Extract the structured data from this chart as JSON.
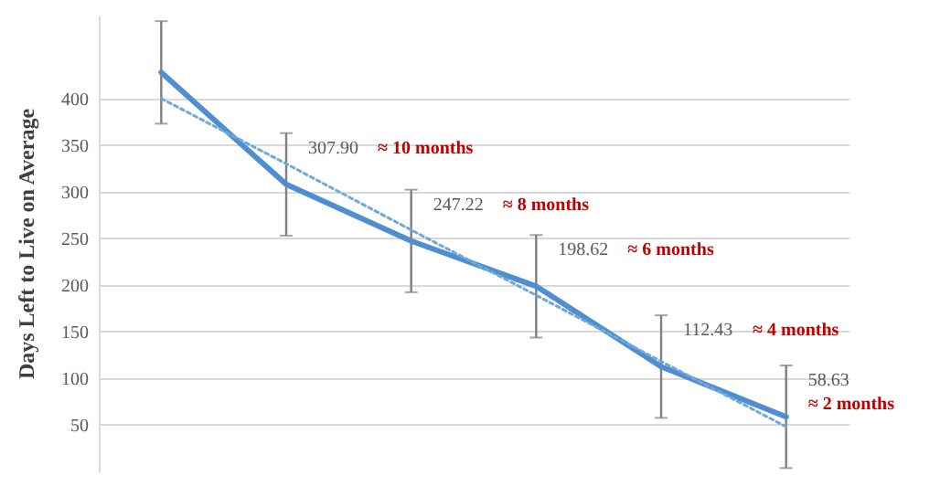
{
  "chart_data": {
    "type": "line",
    "ylabel": "Days Left to Live on Average",
    "categories": [
      null,
      null,
      null,
      null,
      null,
      null
    ],
    "series": [
      {
        "color": "#4f8fcf",
        "values": [
          428,
          307.9,
          247.22,
          198.62,
          112.43,
          58.63
        ],
        "errors": [
          55,
          55,
          55,
          55,
          55,
          55
        ],
        "value_labels": [
          null,
          "307.90",
          "247.22",
          "198.62",
          "112.43",
          "58.63"
        ],
        "line_style": "solid"
      },
      {
        "color": "#6fa8dc",
        "values": [
          400,
          330,
          259,
          189,
          118,
          48
        ],
        "line_style": "dotted"
      }
    ],
    "annotations": [
      null,
      "≈ 10 months",
      "≈ 8 months",
      "≈ 6 months",
      "≈ 4 months",
      "≈ 2 months"
    ],
    "ylim": [
      0,
      490
    ],
    "yticks": [
      50,
      100,
      150,
      200,
      250,
      300,
      350,
      400
    ],
    "grid": "y",
    "tick_labels": "y",
    "marker": "none"
  }
}
